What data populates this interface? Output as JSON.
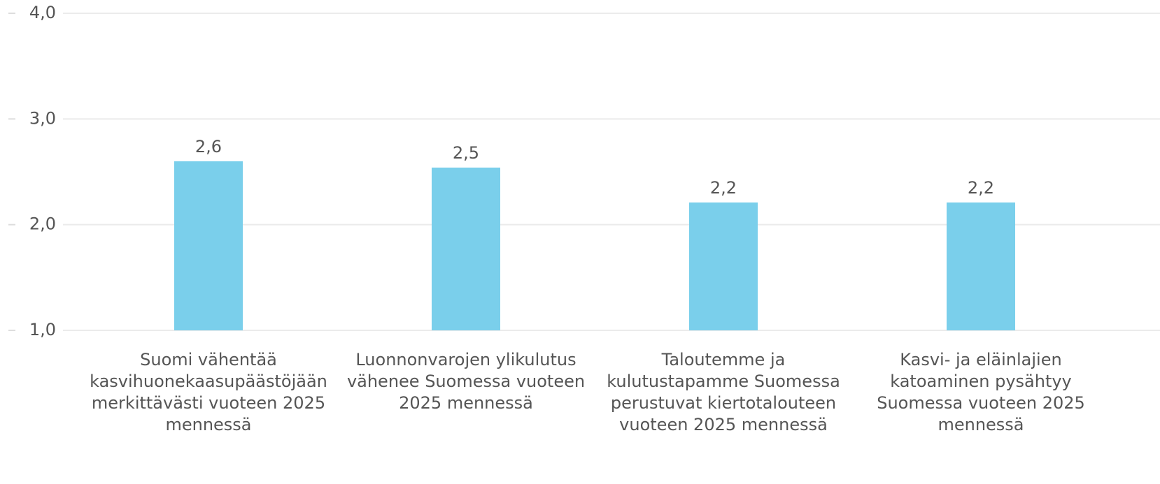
{
  "chart_data": {
    "type": "bar",
    "categories": [
      "Suomi vähentää kasvihuonekaasupäästöjään merkittävästi vuoteen 2025 mennessä",
      "Luonnonvarojen ylikulutus vähenee Suomessa vuoteen 2025 mennessä",
      "Taloutemme ja kulutustapamme Suomessa perustuvat kiertotalouteen vuoteen 2025 mennessä",
      "Kasvi- ja eläinlajien katoaminen pysähtyy Suomessa vuoteen 2025 mennessä"
    ],
    "values": [
      2.6,
      2.54,
      2.21,
      2.21
    ],
    "value_labels": [
      "2,6",
      "2,5",
      "2,2",
      "2,2"
    ],
    "color": "#7acfeb",
    "ylim": [
      1,
      4
    ],
    "yticks": [
      {
        "value": 1,
        "label": "1,0"
      },
      {
        "value": 2,
        "label": "2,0"
      },
      {
        "value": 3,
        "label": "3,0"
      },
      {
        "value": 4,
        "label": "4,0"
      }
    ],
    "grid": true
  }
}
